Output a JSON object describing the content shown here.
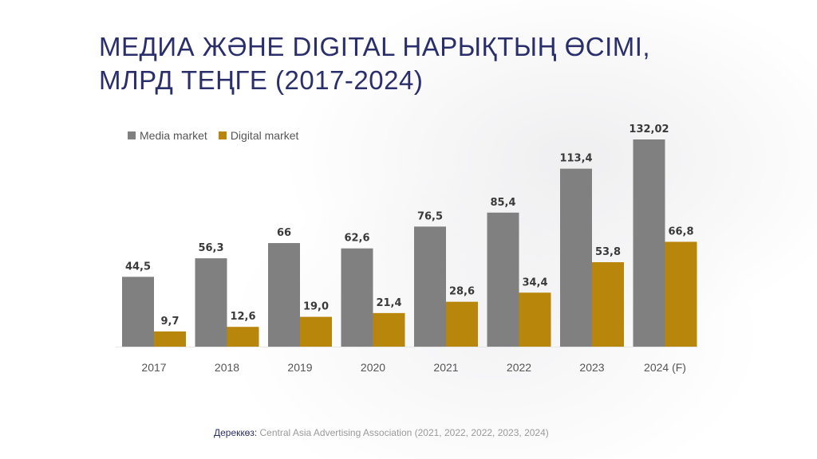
{
  "title_lines": [
    "МЕДИА ЖӘНЕ DIGITAL НАРЫҚТЫҢ ӨСІМІ,",
    "МЛРД ТЕҢГЕ (2017-2024)"
  ],
  "colors": {
    "title": "#2a2f6b",
    "media": "#808080",
    "digital": "#b8860b"
  },
  "chart_data": {
    "type": "bar",
    "categories": [
      "2017",
      "2018",
      "2019",
      "2020",
      "2021",
      "2022",
      "2023",
      "2024 (F)"
    ],
    "series": [
      {
        "name": "Media market",
        "values": [
          44.5,
          56.3,
          66,
          62.6,
          76.5,
          85.4,
          113.4,
          132.02
        ],
        "labels": [
          "44,5",
          "56,3",
          "66",
          "62,6",
          "76,5",
          "85,4",
          "113,4",
          "132,02"
        ]
      },
      {
        "name": "Digital market",
        "values": [
          9.7,
          12.6,
          19.0,
          21.4,
          28.6,
          34.4,
          53.8,
          66.8
        ],
        "labels": [
          "9,7",
          "12,6",
          "19,0",
          "21,4",
          "28,6",
          "34,4",
          "53,8",
          "66,8"
        ]
      }
    ],
    "ylim": [
      0,
      132.02
    ],
    "legend_position": "top-left",
    "grid": false
  },
  "source": {
    "label": "Дереккөз:",
    "text": "Central Asia Advertising Association  (2021, 2022, 2022, 2023, 2024)"
  }
}
